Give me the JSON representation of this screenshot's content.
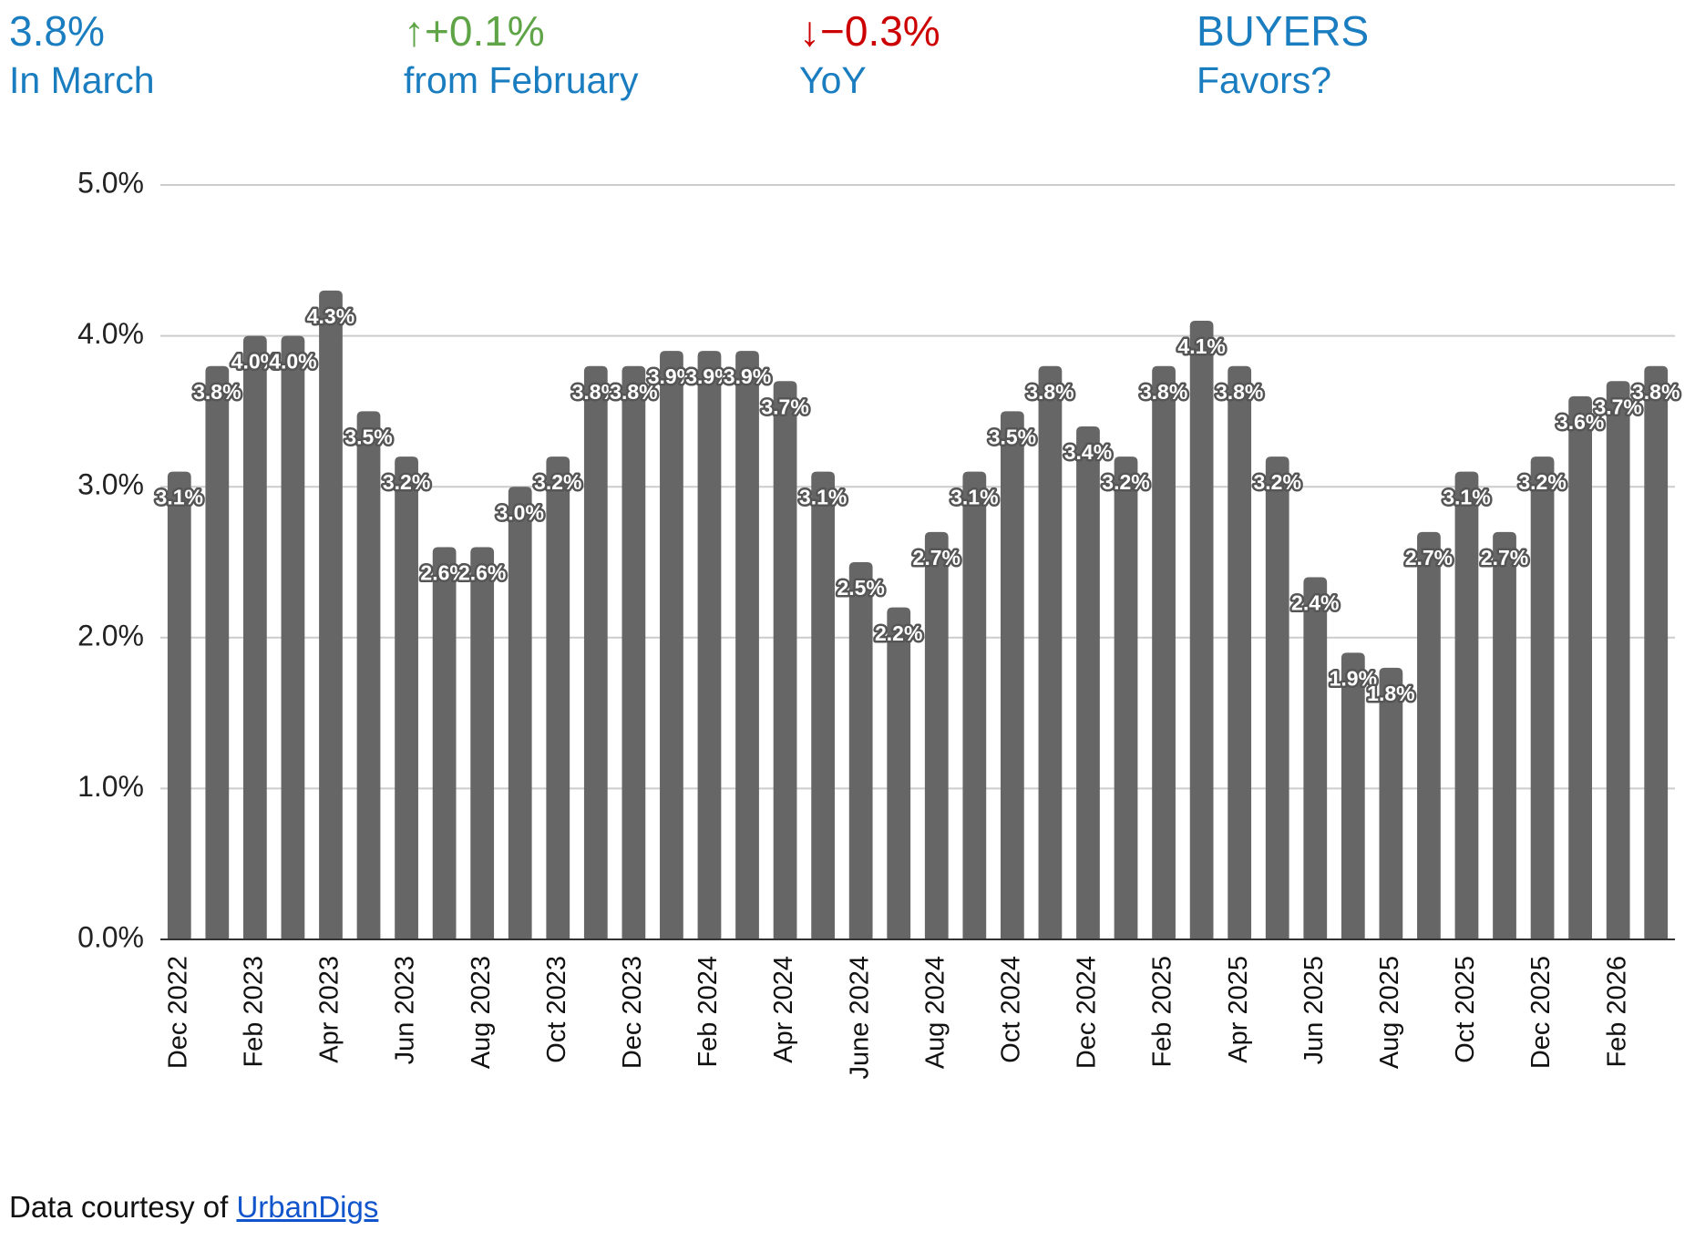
{
  "kpis": [
    {
      "value": "3.8%",
      "label": "In March",
      "color": "#1a7dc0"
    },
    {
      "value": "↑+0.1%",
      "label": "from February",
      "color": "#5fa548"
    },
    {
      "value": "↓−0.3%",
      "label": "YoY",
      "color": "#cc0000"
    },
    {
      "value": "BUYERS",
      "label": "Favors?",
      "color": "#1a7dc0"
    }
  ],
  "chart_data": {
    "type": "bar",
    "color": "#666666",
    "grid": true,
    "categories": [
      "Dec 2022",
      null,
      "Feb 2023",
      null,
      "Apr 2023",
      null,
      "Jun 2023",
      null,
      "Aug 2023",
      null,
      "Oct 2023",
      null,
      "Dec 2023",
      null,
      "Feb 2024",
      null,
      "Apr 2024",
      null,
      "June 2024",
      null,
      "Aug 2024",
      null,
      "Oct 2024",
      null,
      "Dec 2024",
      null,
      "Feb 2025",
      null,
      "Apr 2025",
      null,
      "Jun 2025",
      null,
      "Aug 2025",
      null,
      "Oct 2025",
      null,
      "Dec 2025",
      null,
      "Feb 2026",
      null
    ],
    "values": [
      3.1,
      3.8,
      4.0,
      4.0,
      4.3,
      3.5,
      3.2,
      2.6,
      2.6,
      3.0,
      3.2,
      3.8,
      3.8,
      3.9,
      3.9,
      3.9,
      3.7,
      3.1,
      2.5,
      2.2,
      2.7,
      3.1,
      3.5,
      3.8,
      3.4,
      3.2,
      3.8,
      4.1,
      3.8,
      3.2,
      2.4,
      1.9,
      1.8,
      2.7,
      3.1,
      2.7,
      3.2,
      3.6,
      3.7,
      3.8
    ],
    "value_labels": [
      "3.1%",
      "3.8%",
      "4.0%",
      "4.0%",
      "4.3%",
      "3.5%",
      "3.2%",
      "2.6%",
      "2.6%",
      "3.0%",
      "3.2%",
      "3.8%",
      "3.8%",
      "3.9%",
      "3.9%",
      "3.9%",
      "3.7%",
      "3.1%",
      "2.5%",
      "2.2%",
      "2.7%",
      "3.1%",
      "3.5%",
      "3.8%",
      "3.4%",
      "3.2%",
      "3.8%",
      "4.1%",
      "3.8%",
      "3.2%",
      "2.4%",
      "1.9%",
      "1.8%",
      "2.7%",
      "3.1%",
      "2.7%",
      "3.2%",
      "3.6%",
      "3.7%",
      "3.8%"
    ],
    "ylim": [
      0,
      5
    ],
    "yticks": [
      {
        "value": 0,
        "label": "0.0%"
      },
      {
        "value": 1,
        "label": "1.0%"
      },
      {
        "value": 2,
        "label": "2.0%"
      },
      {
        "value": 3,
        "label": "3.0%"
      },
      {
        "value": 4,
        "label": "4.0%"
      },
      {
        "value": 5,
        "label": "5.0%"
      }
    ]
  },
  "footer": {
    "text": "Data courtesy of",
    "link": "UrbanDigs"
  }
}
